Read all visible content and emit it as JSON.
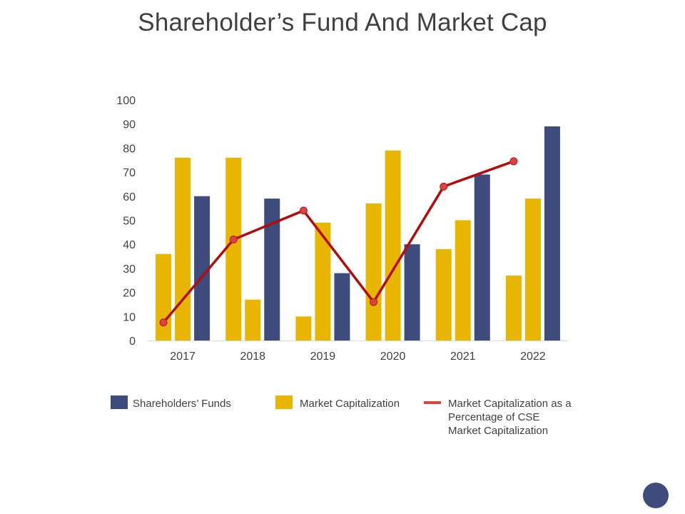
{
  "title": "Shareholder’s Fund And Market Cap",
  "colors": {
    "shareholders": "#3d4b7d",
    "market_cap": "#e8b600",
    "line": "#b20c0c",
    "line_marker": "#e04040",
    "legend_line": "#d9473f",
    "axis": "#d9d9d9",
    "text": "#404040",
    "corner_dot": "#3d4b7d"
  },
  "legend": {
    "shareholders": "Shareholders’ Funds",
    "market_cap": "Market Capitalization",
    "pct_line1": "Market Capitalization as a",
    "pct_line2": "Percentage of CSE",
    "pct_line3": "Market Capitalization"
  },
  "chart_data": {
    "type": "bar",
    "categories": [
      "2017",
      "2018",
      "2019",
      "2020",
      "2021",
      "2022"
    ],
    "ylim": [
      0,
      100
    ],
    "yticks": [
      0,
      10,
      20,
      30,
      40,
      50,
      60,
      70,
      80,
      90,
      100
    ],
    "grid": false,
    "legend_position": "bottom",
    "series": [
      {
        "name": "Market Capitalization",
        "kind": "bar",
        "color": "#e8b600",
        "values": [
          36,
          76,
          10,
          57,
          38,
          27
        ]
      },
      {
        "name": "Market Capitalization",
        "kind": "bar",
        "color": "#e8b600",
        "values": [
          76,
          17,
          49,
          79,
          50,
          59
        ]
      },
      {
        "name": "Shareholders’ Funds",
        "kind": "bar",
        "color": "#3d4b7d",
        "values": [
          60,
          59,
          28,
          40,
          69,
          89
        ]
      },
      {
        "name": "Market Capitalization as a Percentage of CSE Market Capitalization",
        "kind": "line",
        "color": "#b20c0c",
        "values": [
          7.5,
          42,
          54,
          16,
          64,
          74.5
        ]
      }
    ]
  }
}
